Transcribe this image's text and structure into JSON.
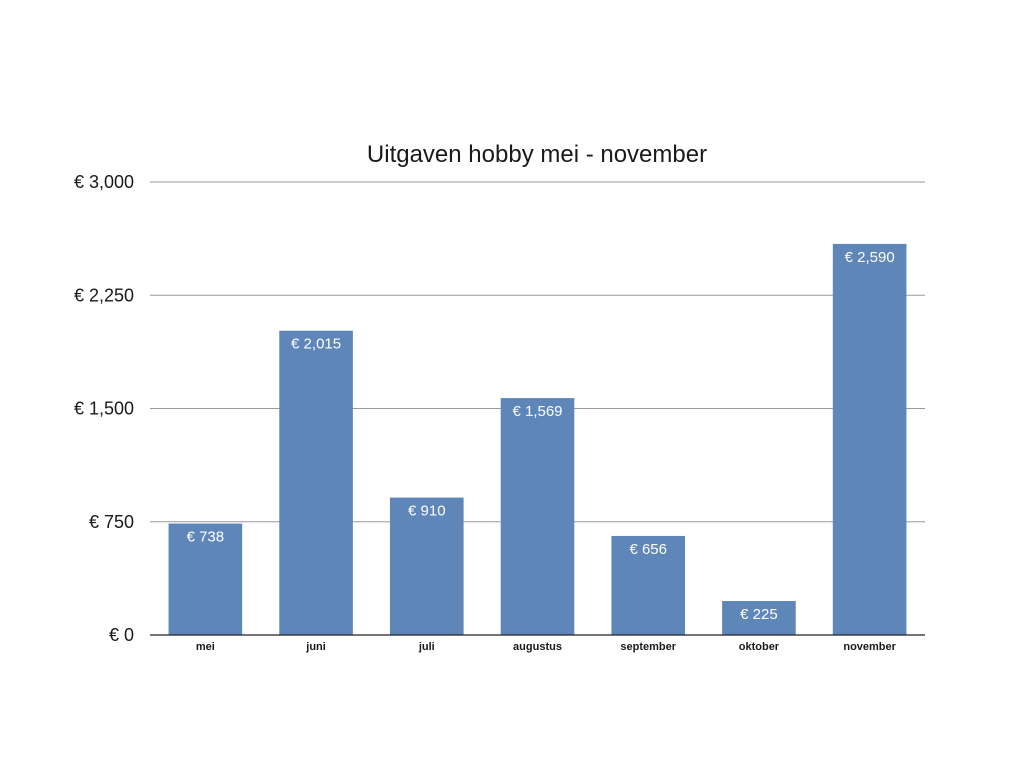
{
  "chart_data": {
    "type": "bar",
    "title": "Uitgaven hobby mei - november",
    "xlabel": "",
    "ylabel": "",
    "categories": [
      "mei",
      "juni",
      "juli",
      "augustus",
      "september",
      "oktober",
      "november"
    ],
    "values": [
      738,
      2015,
      910,
      1569,
      656,
      225,
      2590
    ],
    "data_labels": [
      "€ 738",
      "€ 2,015",
      "€ 910",
      "€ 1,569",
      "€ 656",
      "€ 225",
      "€ 2,590"
    ],
    "ylim": [
      0,
      3000
    ],
    "y_ticks": [
      0,
      750,
      1500,
      2250,
      3000
    ],
    "y_tick_labels": [
      "€ 0",
      "€ 750",
      "€ 1,500",
      "€ 2,250",
      "€ 3,000"
    ],
    "grid": true,
    "legend": "none",
    "bar_color": "#5f86b9",
    "data_label_color": "#ffffff"
  }
}
